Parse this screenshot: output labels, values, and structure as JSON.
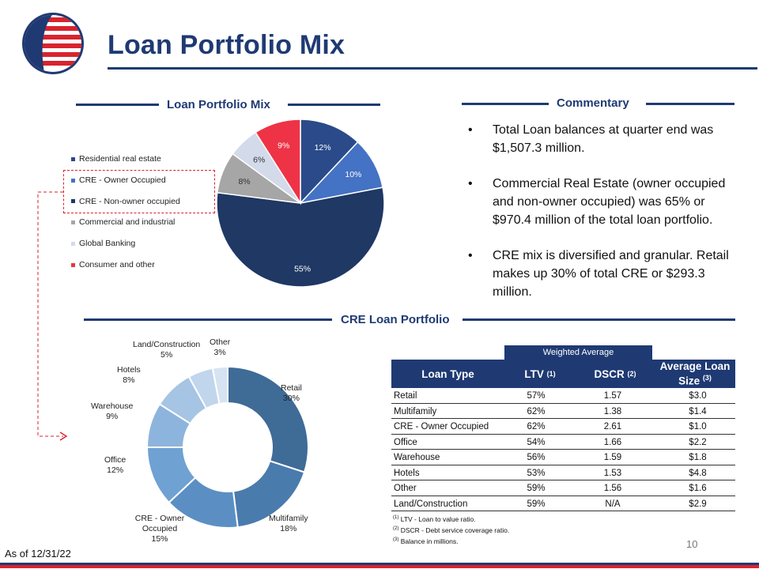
{
  "page": {
    "title": "Loan Portfolio Mix",
    "as_of": "As of 12/31/22",
    "page_number": "10"
  },
  "sections": {
    "pie_heading": "Loan Portfolio Mix",
    "commentary_heading": "Commentary",
    "cre_heading": "CRE Loan Portfolio"
  },
  "commentary": [
    "Total Loan balances at quarter end was $1,507.3 million.",
    "Commercial Real Estate (owner occupied and non-owner occupied) was 65% or $970.4 million of the total loan portfolio.",
    "CRE mix is diversified and granular.  Retail makes up 30% of total CRE or $293.3 million."
  ],
  "chart_data": [
    {
      "type": "pie",
      "categories": [
        "Residential real estate",
        "CRE - Owner Occupied",
        "CRE - Non-owner occupied",
        "Commercial and industrial",
        "Global Banking",
        "Consumer and other"
      ],
      "values": [
        12,
        10,
        55,
        8,
        6,
        9
      ],
      "labels": [
        "12%",
        "10%",
        "55%",
        "8%",
        "6%",
        "9%"
      ],
      "colors": [
        "#2a4a8a",
        "#4472c4",
        "#1f3864",
        "#a6a6a6",
        "#d3daea",
        "#ee3346"
      ],
      "legend": "left"
    },
    {
      "type": "pie",
      "donut": true,
      "categories": [
        "Retail",
        "Multifamily",
        "CRE - Owner Occupied",
        "Office",
        "Warehouse",
        "Hotels",
        "Land/Construction",
        "Other"
      ],
      "values": [
        30,
        18,
        15,
        12,
        9,
        8,
        5,
        3
      ],
      "labels": [
        "30%",
        "18%",
        "15%",
        "12%",
        "9%",
        "8%",
        "5%",
        "3%"
      ],
      "colors": [
        "#3f6b97",
        "#4a7bad",
        "#5b8fc4",
        "#6fa1d2",
        "#8db4dc",
        "#a6c4e4",
        "#c1d5ec",
        "#d6e3f2"
      ]
    }
  ],
  "table": {
    "group_header": "Weighted Average",
    "headers": {
      "type": "Loan Type",
      "ltv": "LTV",
      "ltv_note": "(1)",
      "dscr": "DSCR",
      "dscr_note": "(2)",
      "size_line1": "Average Loan",
      "size_line2": "Size",
      "size_note": "(3)"
    },
    "rows": [
      {
        "type": "Retail",
        "ltv": "57%",
        "dscr": "1.57",
        "size": "$3.0"
      },
      {
        "type": "Multifamily",
        "ltv": "62%",
        "dscr": "1.38",
        "size": "$1.4"
      },
      {
        "type": "CRE -  Owner Occupied",
        "ltv": "62%",
        "dscr": "2.61",
        "size": "$1.0"
      },
      {
        "type": "Office",
        "ltv": "54%",
        "dscr": "1.66",
        "size": "$2.2"
      },
      {
        "type": "Warehouse",
        "ltv": "56%",
        "dscr": "1.59",
        "size": "$1.8"
      },
      {
        "type": "Hotels",
        "ltv": "53%",
        "dscr": "1.53",
        "size": "$4.8"
      },
      {
        "type": "Other",
        "ltv": "59%",
        "dscr": "1.56",
        "size": "$1.6"
      },
      {
        "type": "Land/Construction",
        "ltv": "59%",
        "dscr": "N/A",
        "size": "$2.9"
      }
    ],
    "footnotes": [
      {
        "mark": "(1)",
        "text": "LTV - Loan to value ratio."
      },
      {
        "mark": "(2)",
        "text": "DSCR - Debt service coverage ratio."
      },
      {
        "mark": "(3)",
        "text": "Balance in millions."
      }
    ]
  }
}
